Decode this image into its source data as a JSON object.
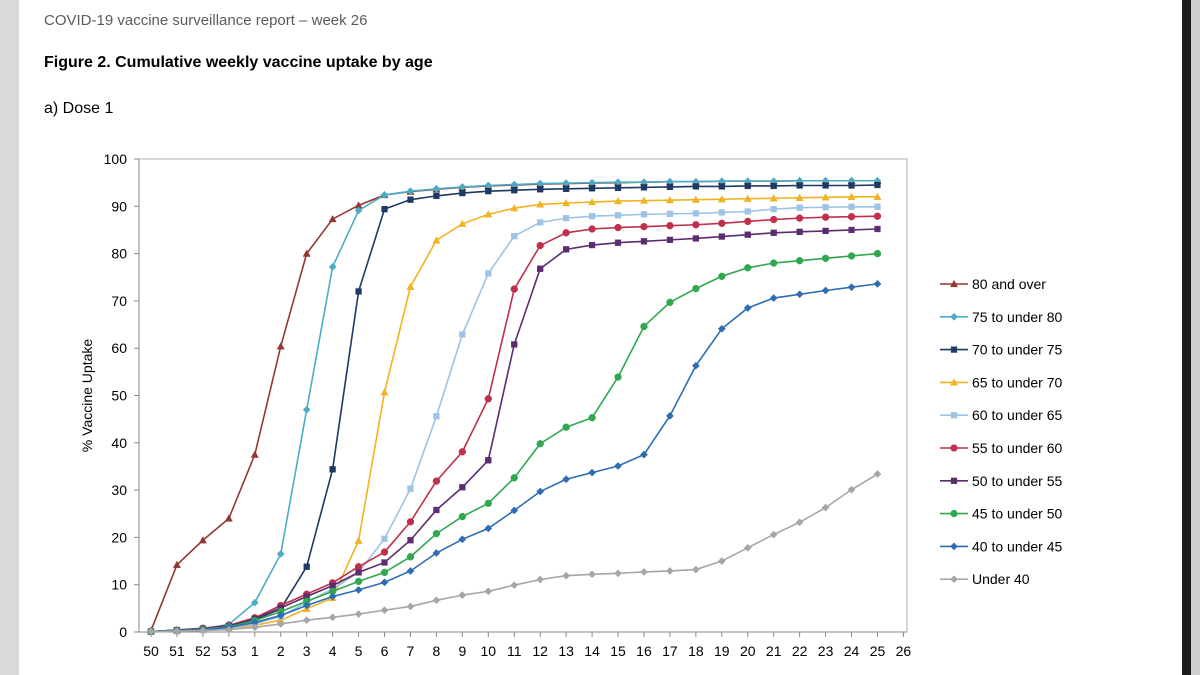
{
  "document": {
    "header": "COVID-19 vaccine surveillance report – week 26",
    "figure_title": "Figure 2. Cumulative weekly vaccine uptake by age",
    "subtitle": "a) Dose 1"
  },
  "chart_data": {
    "type": "line",
    "title": "Figure 2. Cumulative weekly vaccine uptake by age",
    "subtitle": "a) Dose 1",
    "xlabel": "",
    "ylabel": "% Vaccine Uptake",
    "ylim": [
      0,
      100
    ],
    "yticks": [
      0,
      10,
      20,
      30,
      40,
      50,
      60,
      70,
      80,
      90,
      100
    ],
    "categories": [
      "50",
      "51",
      "52",
      "53",
      "1",
      "2",
      "3",
      "4",
      "5",
      "6",
      "7",
      "8",
      "9",
      "10",
      "11",
      "12",
      "13",
      "14",
      "15",
      "16",
      "17",
      "18",
      "19",
      "20",
      "21",
      "22",
      "23",
      "24",
      "25",
      "26"
    ],
    "grid": false,
    "legend_position": "right",
    "series": [
      {
        "name": "80 and over",
        "color": "#943634",
        "marker": "triangle",
        "values": [
          0.3,
          14.2,
          19.4,
          24,
          37.5,
          60.4,
          80,
          87.3,
          90.2,
          92.4,
          93.1,
          93.6,
          94,
          94.3,
          94.5,
          94.7,
          94.8,
          94.9,
          95,
          95.1,
          95.2,
          95.2,
          95.3,
          95.3,
          95.3,
          95.4,
          95.4,
          95.4,
          95.4,
          null
        ]
      },
      {
        "name": "75 to under 80",
        "color": "#4bacc6",
        "marker": "diamond",
        "values": [
          0.1,
          0.4,
          0.7,
          1.6,
          6.2,
          16.5,
          47,
          77.2,
          89.1,
          92.4,
          93.2,
          93.7,
          94.1,
          94.4,
          94.6,
          94.8,
          94.9,
          95,
          95.1,
          95.1,
          95.2,
          95.2,
          95.3,
          95.3,
          95.3,
          95.4,
          95.4,
          95.4,
          95.4,
          null
        ]
      },
      {
        "name": "70 to under 75",
        "color": "#1f3864",
        "marker": "square",
        "values": [
          0.1,
          0.3,
          0.6,
          1.1,
          2.6,
          4.9,
          13.8,
          34.4,
          72,
          89.4,
          91.4,
          92.2,
          92.8,
          93.2,
          93.4,
          93.6,
          93.7,
          93.8,
          93.9,
          94,
          94.1,
          94.2,
          94.2,
          94.3,
          94.3,
          94.4,
          94.4,
          94.4,
          94.5,
          null
        ]
      },
      {
        "name": "65 to under 70",
        "color": "#f0b323",
        "marker": "triangle",
        "values": [
          0.1,
          0.2,
          0.4,
          0.7,
          1.4,
          2.5,
          4.9,
          7.2,
          19.3,
          50.7,
          73,
          82.8,
          86.3,
          88.3,
          89.6,
          90.4,
          90.7,
          90.9,
          91.1,
          91.2,
          91.3,
          91.4,
          91.5,
          91.6,
          91.7,
          91.8,
          91.9,
          92,
          92,
          null
        ]
      },
      {
        "name": "60 to under 65",
        "color": "#9dc3e6",
        "marker": "square",
        "values": [
          0.1,
          0.2,
          0.4,
          0.8,
          1.7,
          3.3,
          6.3,
          9.1,
          12.6,
          19.7,
          30.3,
          45.6,
          62.9,
          75.8,
          83.7,
          86.6,
          87.5,
          87.9,
          88.1,
          88.3,
          88.4,
          88.5,
          88.7,
          88.9,
          89.4,
          89.7,
          89.8,
          89.9,
          89.9,
          null
        ]
      },
      {
        "name": "55 to under 60",
        "color": "#c0304a",
        "marker": "circle",
        "values": [
          0.1,
          0.4,
          0.8,
          1.4,
          3,
          5.6,
          8,
          10.4,
          13.8,
          16.9,
          23.3,
          31.9,
          38.1,
          49.3,
          72.5,
          81.7,
          84.4,
          85.2,
          85.5,
          85.7,
          85.9,
          86.1,
          86.4,
          86.8,
          87.2,
          87.5,
          87.7,
          87.8,
          87.9,
          null
        ]
      },
      {
        "name": "50 to under 55",
        "color": "#5b2c6f",
        "marker": "square",
        "values": [
          0.1,
          0.4,
          0.7,
          1.3,
          2.8,
          5.1,
          7.5,
          9.8,
          12.6,
          14.7,
          19.4,
          25.8,
          30.6,
          36.3,
          60.8,
          76.8,
          80.9,
          81.8,
          82.3,
          82.6,
          82.9,
          83.2,
          83.6,
          84,
          84.4,
          84.6,
          84.8,
          85,
          85.2,
          null
        ]
      },
      {
        "name": "45 to under 50",
        "color": "#2fa84f",
        "marker": "circle",
        "values": [
          0.1,
          0.3,
          0.6,
          1.1,
          2.4,
          4.3,
          6.5,
          8.6,
          10.7,
          12.6,
          15.9,
          20.8,
          24.4,
          27.2,
          32.6,
          39.8,
          43.3,
          45.3,
          53.9,
          64.6,
          69.7,
          72.6,
          75.2,
          77,
          78,
          78.5,
          79,
          79.5,
          80,
          null
        ]
      },
      {
        "name": "40 to under 45",
        "color": "#2e6db4",
        "marker": "diamond",
        "values": [
          0.1,
          0.3,
          0.5,
          1,
          2,
          3.5,
          5.6,
          7.5,
          8.9,
          10.5,
          12.9,
          16.7,
          19.6,
          21.9,
          25.7,
          29.7,
          32.3,
          33.7,
          35.1,
          37.5,
          45.7,
          56.3,
          64.1,
          68.5,
          70.6,
          71.4,
          72.2,
          72.9,
          73.6,
          null
        ]
      },
      {
        "name": "Under 40",
        "color": "#a6a6a6",
        "marker": "diamond",
        "values": [
          0.1,
          0.2,
          0.3,
          0.5,
          1,
          1.7,
          2.5,
          3.1,
          3.8,
          4.6,
          5.4,
          6.7,
          7.8,
          8.6,
          9.9,
          11.1,
          11.9,
          12.2,
          12.4,
          12.7,
          12.9,
          13.2,
          15,
          17.8,
          20.6,
          23.2,
          26.3,
          30.1,
          33.4,
          null
        ]
      }
    ]
  }
}
